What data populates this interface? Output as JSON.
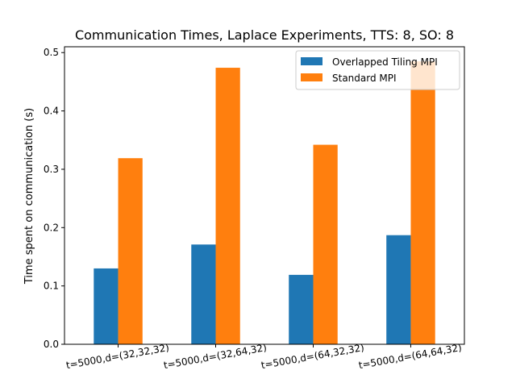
{
  "chart_data": {
    "type": "bar",
    "title": "Communication Times, Laplace Experiments, TTS: 8, SO: 8",
    "xlabel": "",
    "ylabel": "Time spent on communication (s)",
    "categories": [
      "t=5000,d=(32,32,32)",
      "t=5000,d=(32,64,32)",
      "t=5000,d=(64,32,32)",
      "t=5000,d=(64,64,32)"
    ],
    "series": [
      {
        "name": "Overlapped Tiling MPI",
        "color": "#1f77b4",
        "values": [
          0.13,
          0.171,
          0.119,
          0.187
        ]
      },
      {
        "name": "Standard MPI",
        "color": "#ff7f0e",
        "values": [
          0.319,
          0.474,
          0.342,
          0.485
        ]
      }
    ],
    "ylim": [
      0,
      0.51
    ],
    "yticks": [
      0.0,
      0.1,
      0.2,
      0.3,
      0.4,
      0.5
    ],
    "ytick_labels": [
      "0.0",
      "0.1",
      "0.2",
      "0.3",
      "0.4",
      "0.5"
    ],
    "xtick_rotation_deg": 10,
    "grid": false,
    "legend_position": "top-right"
  }
}
